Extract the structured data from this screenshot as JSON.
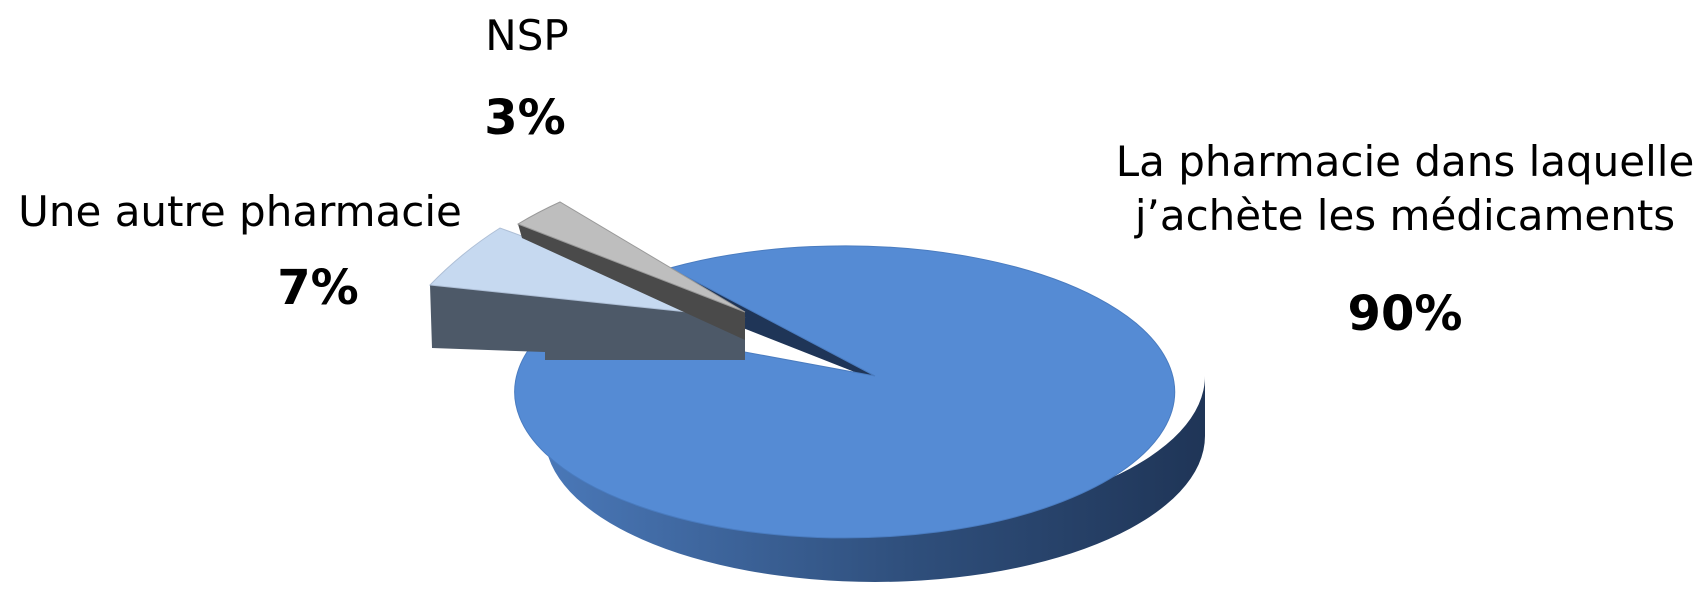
{
  "chart_data": {
    "type": "pie",
    "style": "3d-exploded",
    "slices": [
      {
        "name_lines": [
          "La pharmacie dans laquelle",
          "j’achète les médicaments"
        ],
        "value": 90,
        "value_label": "90%",
        "color": "#558BD4"
      },
      {
        "name_lines": [
          "Une autre pharmacie"
        ],
        "value": 7,
        "value_label": "7%",
        "color": "#C6D9F0"
      },
      {
        "name_lines": [
          "NSP"
        ],
        "value": 3,
        "value_label": "3%",
        "color": "#BEBEBE"
      }
    ]
  }
}
